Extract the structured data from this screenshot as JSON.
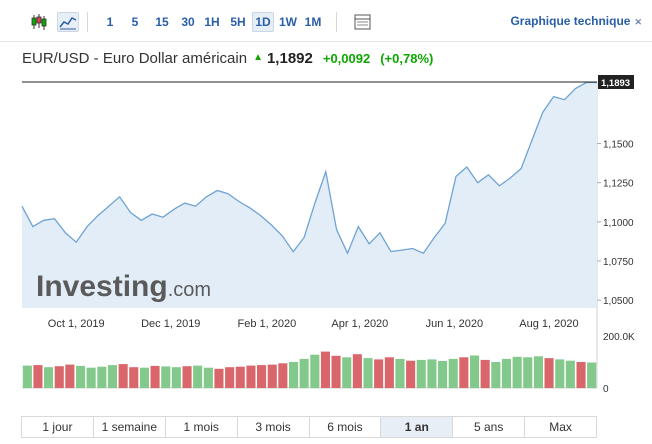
{
  "toolbar": {
    "icons": [
      "candlestick-icon",
      "area-chart-icon"
    ],
    "intervals": [
      "1",
      "5",
      "15",
      "30",
      "1H",
      "5H",
      "1D",
      "1W",
      "1M"
    ],
    "active_interval": "1D",
    "table_icon": "table-icon",
    "tech_link": "Graphique technique",
    "tech_link_icon": "close-icon"
  },
  "instrument": {
    "name": "EUR/USD - Euro Dollar américain",
    "direction_icon": "up-arrow-icon",
    "price": "1,1892",
    "change": "+0,0092",
    "change_pct": "(+0,78%)",
    "up_color": "#0ea600"
  },
  "watermark": {
    "brand": "Investing",
    "suffix": ".com"
  },
  "chart_data": {
    "type": "area",
    "x": [
      "2019-08-27",
      "2019-09-03",
      "2019-09-10",
      "2019-09-17",
      "2019-09-24",
      "2019-10-01",
      "2019-10-08",
      "2019-10-15",
      "2019-10-22",
      "2019-10-29",
      "2019-11-05",
      "2019-11-12",
      "2019-11-19",
      "2019-11-26",
      "2019-12-03",
      "2019-12-10",
      "2019-12-17",
      "2019-12-24",
      "2019-12-31",
      "2020-01-07",
      "2020-01-14",
      "2020-01-21",
      "2020-01-28",
      "2020-02-04",
      "2020-02-11",
      "2020-02-18",
      "2020-02-25",
      "2020-03-03",
      "2020-03-10",
      "2020-03-17",
      "2020-03-24",
      "2020-03-31",
      "2020-04-07",
      "2020-04-14",
      "2020-04-21",
      "2020-04-28",
      "2020-05-05",
      "2020-05-12",
      "2020-05-19",
      "2020-05-26",
      "2020-06-02",
      "2020-06-09",
      "2020-06-16",
      "2020-06-23",
      "2020-06-30",
      "2020-07-07",
      "2020-07-14",
      "2020-07-21",
      "2020-07-28",
      "2020-08-04",
      "2020-08-11",
      "2020-08-18",
      "2020-08-25",
      "2020-09-01"
    ],
    "values": [
      1.11,
      1.097,
      1.101,
      1.102,
      1.093,
      1.087,
      1.097,
      1.104,
      1.11,
      1.116,
      1.106,
      1.101,
      1.105,
      1.103,
      1.108,
      1.112,
      1.11,
      1.116,
      1.12,
      1.118,
      1.113,
      1.109,
      1.104,
      1.098,
      1.091,
      1.081,
      1.09,
      1.112,
      1.132,
      1.095,
      1.08,
      1.097,
      1.086,
      1.093,
      1.081,
      1.082,
      1.083,
      1.08,
      1.09,
      1.099,
      1.129,
      1.135,
      1.125,
      1.13,
      1.123,
      1.128,
      1.134,
      1.152,
      1.17,
      1.18,
      1.178,
      1.185,
      1.189,
      1.189
    ],
    "price_label": "1,1893",
    "x_ticks": [
      "Oct 1, 2019",
      "Dec 1, 2019",
      "Feb 1, 2020",
      "Apr 1, 2020",
      "Jun 1, 2020",
      "Aug 1, 2020"
    ],
    "y_ticks": [
      "1,1500",
      "1,1250",
      "1,1000",
      "1,0750",
      "1,0500"
    ],
    "volume_ticks": [
      "200.0K",
      "0"
    ],
    "volume": [
      86,
      88,
      80,
      84,
      90,
      85,
      78,
      82,
      88,
      92,
      80,
      78,
      85,
      83,
      80,
      84,
      86,
      78,
      74,
      80,
      82,
      86,
      88,
      90,
      95,
      100,
      112,
      128,
      140,
      124,
      118,
      130,
      115,
      110,
      118,
      112,
      105,
      108,
      110,
      104,
      112,
      118,
      125,
      108,
      100,
      112,
      120,
      118,
      122,
      115,
      110,
      105,
      100,
      98
    ],
    "volume_up": [
      true,
      false,
      true,
      false,
      false,
      true,
      true,
      true,
      true,
      false,
      false,
      true,
      false,
      true,
      true,
      false,
      true,
      true,
      false,
      false,
      false,
      false,
      false,
      false,
      false,
      true,
      true,
      true,
      false,
      false,
      true,
      false,
      true,
      false,
      false,
      true,
      false,
      true,
      true,
      true,
      true,
      false,
      true,
      false,
      true,
      true,
      true,
      true,
      true,
      false,
      true,
      true,
      false,
      true
    ],
    "colors": {
      "line": "#6fa3d4",
      "fill": "#e2edf7",
      "vol_up": "#83c98b",
      "vol_down": "#d8666b"
    }
  },
  "ranges": {
    "items": [
      "1 jour",
      "1 semaine",
      "1 mois",
      "3 mois",
      "6 mois",
      "1 an",
      "5 ans",
      "Max"
    ],
    "active": "1 an"
  }
}
